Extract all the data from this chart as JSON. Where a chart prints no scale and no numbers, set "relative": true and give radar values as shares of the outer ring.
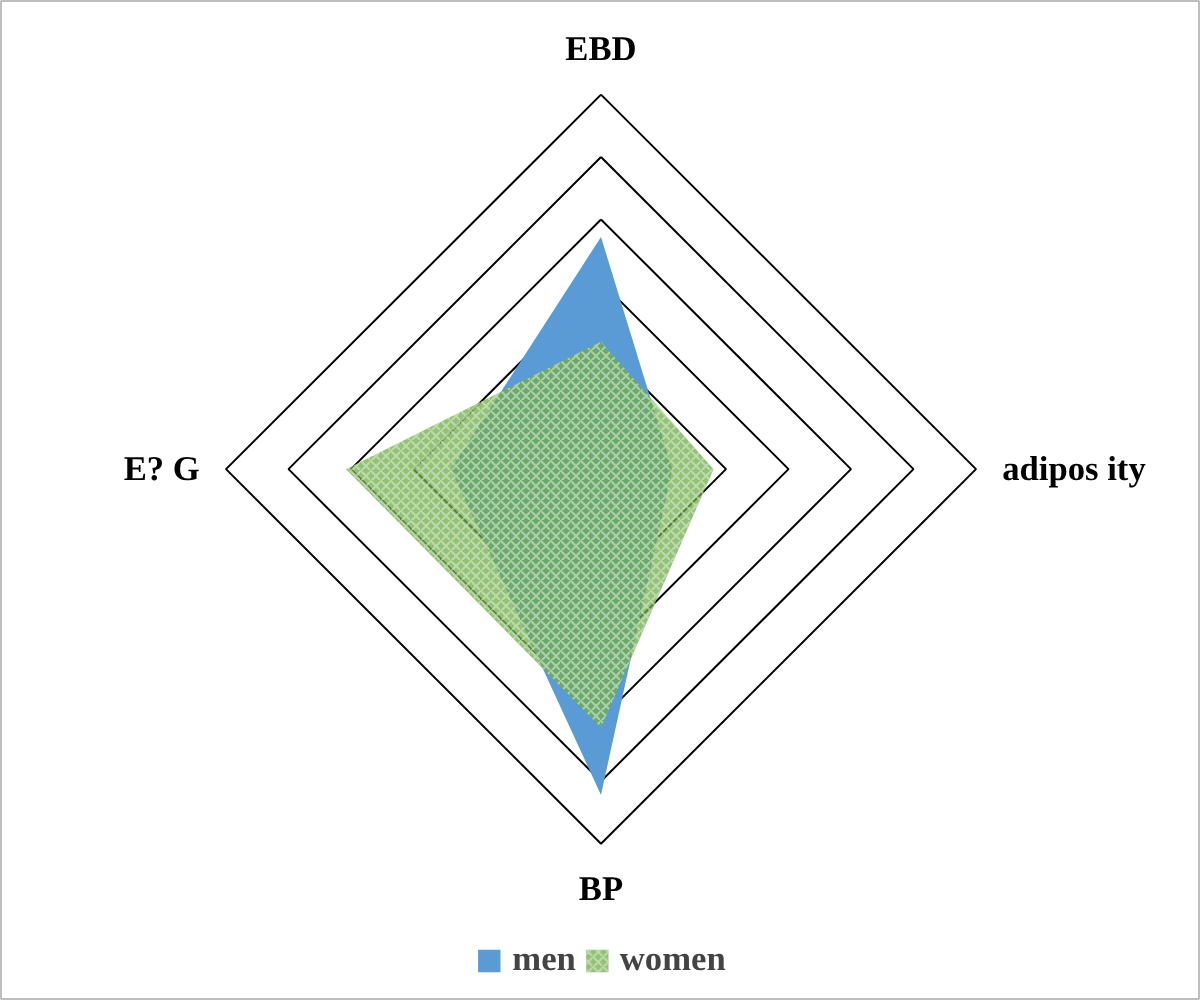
{
  "chart_data": {
    "type": "radar",
    "relative": true,
    "categories": [
      "EBD",
      "adipos ity",
      "BP",
      "E? G"
    ],
    "legend": "bottom",
    "series": [
      {
        "name": "men",
        "color": "#5b9bd5",
        "values": [
          0.62,
          0.19,
          0.87,
          0.4
        ]
      },
      {
        "name": "women",
        "color": "#70ad47",
        "values": [
          0.34,
          0.3,
          0.69,
          0.68
        ]
      }
    ]
  }
}
